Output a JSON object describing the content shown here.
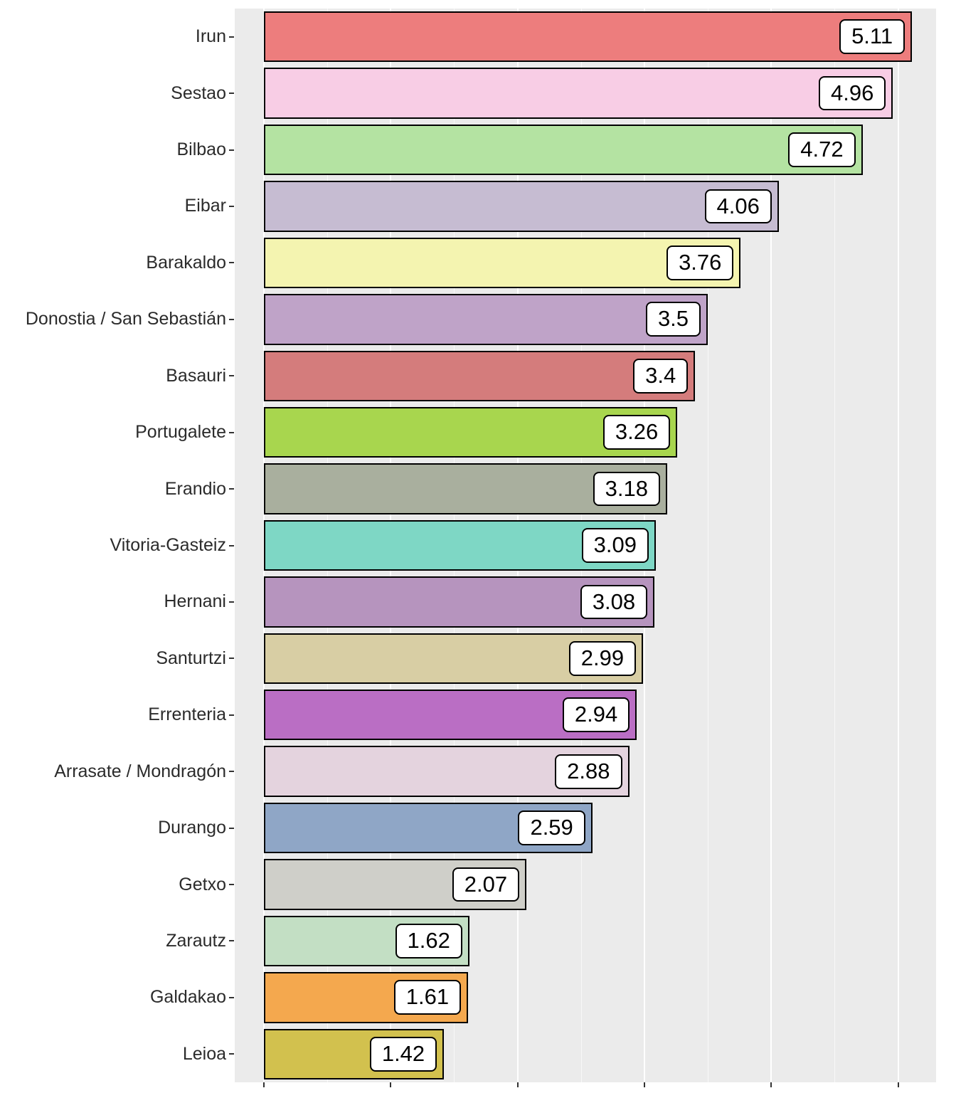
{
  "chart_data": {
    "type": "bar",
    "orientation": "horizontal",
    "title": "",
    "xlabel": "",
    "ylabel": "",
    "legend": "none",
    "grid": true,
    "panel_background": "#EBEBEB",
    "gridline_color": "#FFFFFF",
    "bar_border_color": "#000000",
    "label_box_background": "#FFFFFF",
    "label_box_border": "#000000",
    "xlim": [
      0,
      5.3
    ],
    "x_major_gridlines": [
      0,
      1,
      2,
      3,
      4,
      5
    ],
    "x_minor_gridlines": [
      0.5,
      1.5,
      2.5,
      3.5,
      4.5
    ],
    "categories": [
      "Irun",
      "Sestao",
      "Bilbao",
      "Eibar",
      "Barakaldo",
      "Donostia / San Sebastián",
      "Basauri",
      "Portugalete",
      "Erandio",
      "Vitoria-Gasteiz",
      "Hernani",
      "Santurtzi",
      "Errenteria",
      "Arrasate / Mondragón",
      "Durango",
      "Getxo",
      "Zarautz",
      "Galdakao",
      "Leioa"
    ],
    "values": [
      5.11,
      4.96,
      4.72,
      4.06,
      3.76,
      3.5,
      3.4,
      3.26,
      3.18,
      3.09,
      3.08,
      2.99,
      2.94,
      2.88,
      2.59,
      2.07,
      1.62,
      1.61,
      1.42
    ],
    "value_labels": [
      "5.11",
      "4.96",
      "4.72",
      "4.06",
      "3.76",
      "3.5",
      "3.4",
      "3.26",
      "3.18",
      "3.09",
      "3.08",
      "2.99",
      "2.94",
      "2.88",
      "2.59",
      "2.07",
      "1.62",
      "1.61",
      "1.42"
    ],
    "bar_colors": [
      "#ED7D7D",
      "#F8CDE5",
      "#B4E3A2",
      "#C6BCD2",
      "#F4F4B0",
      "#BFA3C8",
      "#D47C7C",
      "#A8D64E",
      "#A9AF9E",
      "#7ED7C5",
      "#B694BE",
      "#D8CEA4",
      "#BA6EC4",
      "#E4D3DE",
      "#8FA6C6",
      "#CFCFC9",
      "#C3DFC4",
      "#F4A84E",
      "#D2C14E"
    ]
  }
}
